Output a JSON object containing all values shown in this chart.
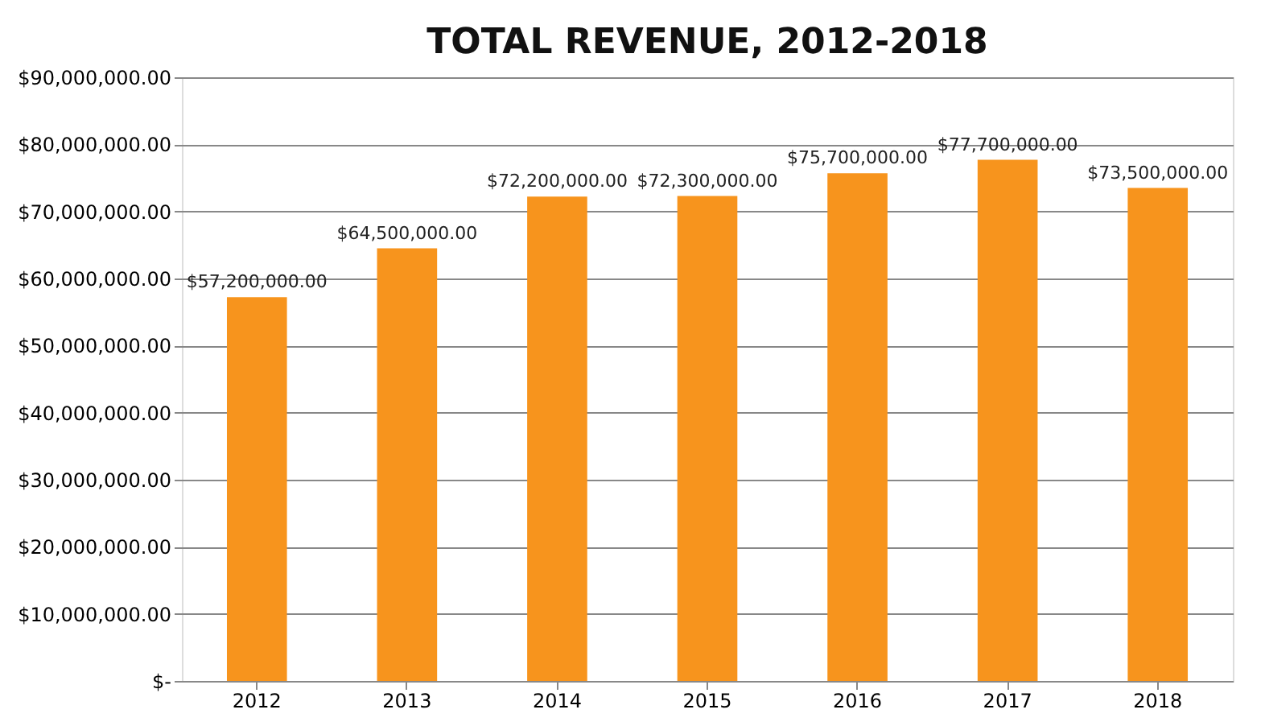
{
  "chart_data": {
    "type": "bar",
    "title": "TOTAL REVENUE, 2012-2018",
    "categories": [
      "2012",
      "2013",
      "2014",
      "2015",
      "2016",
      "2017",
      "2018"
    ],
    "values": [
      57200000,
      64500000,
      72200000,
      72300000,
      75700000,
      77700000,
      73500000
    ],
    "value_labels": [
      "$57,200,000.00",
      "$64,500,000.00",
      "$72,200,000.00",
      "$72,300,000.00",
      "$75,700,000.00",
      "$77,700,000.00",
      "$73,500,000.00"
    ],
    "color": "#f7941d",
    "ylim": [
      0,
      90000000
    ],
    "yticks": [
      {
        "value": 0,
        "label": "$-"
      },
      {
        "value": 10000000,
        "label": "$10,000,000.00"
      },
      {
        "value": 20000000,
        "label": "$20,000,000.00"
      },
      {
        "value": 30000000,
        "label": "$30,000,000.00"
      },
      {
        "value": 40000000,
        "label": "$40,000,000.00"
      },
      {
        "value": 50000000,
        "label": "$50,000,000.00"
      },
      {
        "value": 60000000,
        "label": "$60,000,000.00"
      },
      {
        "value": 70000000,
        "label": "$70,000,000.00"
      },
      {
        "value": 80000000,
        "label": "$80,000,000.00"
      },
      {
        "value": 90000000,
        "label": "$90,000,000.00"
      }
    ],
    "grid": "y"
  }
}
